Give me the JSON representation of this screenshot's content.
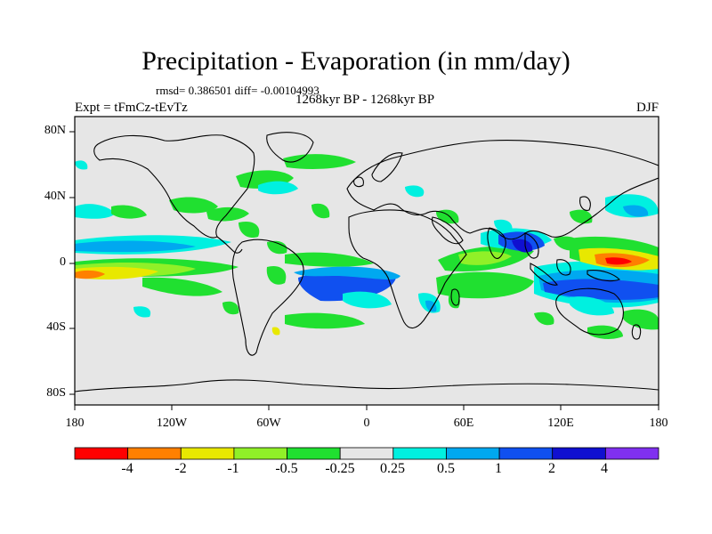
{
  "title": "Precipitation - Evaporation (in mm/day)",
  "stats_line": "rmsd= 0.386501 diff= -0.00104993",
  "period_label": "1268kyr BP - 1268kyr BP",
  "experiment_label": "Expt = tFmCz-tEvTz",
  "season_label": "DJF",
  "lat_ticks": [
    "80N",
    "40N",
    "0",
    "40S",
    "80S"
  ],
  "lon_ticks": [
    "180",
    "120W",
    "60W",
    "0",
    "60E",
    "120E",
    "180"
  ],
  "colorbar": {
    "labels": [
      "-4",
      "-2",
      "-1",
      "-0.5",
      "-0.25",
      "0.25",
      "0.5",
      "1",
      "2",
      "4"
    ],
    "colors": [
      "#ff0000",
      "#ff8000",
      "#e8e800",
      "#90f028",
      "#20e030",
      "#e6e6e6",
      "#00f0e0",
      "#00a8f0",
      "#1050f0",
      "#1010d0",
      "#8030f0"
    ]
  },
  "map": {
    "background_color": "#e6e6e6",
    "coastline_color": "#000000"
  }
}
